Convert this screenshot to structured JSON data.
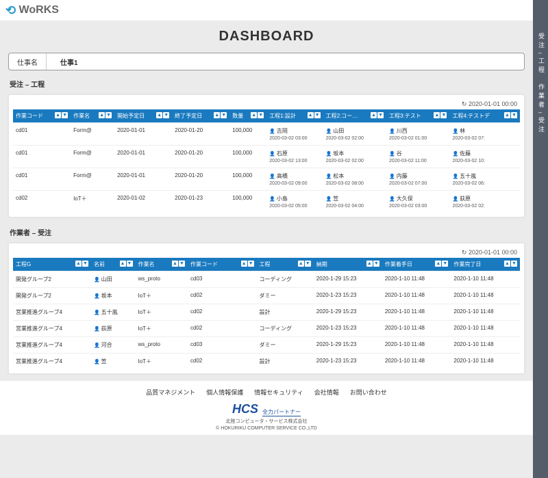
{
  "brand": {
    "name": "WoRKS"
  },
  "title": "DASHBOARD",
  "sidebar": {
    "items": [
      "受注 – 工程",
      "作業者 – 受注"
    ]
  },
  "jobbar": {
    "label": "仕事名",
    "value": "仕事1"
  },
  "section1": {
    "title": "受注 – 工程",
    "timestamp": "2020-01-01 00:00",
    "columns": [
      "作業コード",
      "作業名",
      "開始予定日",
      "終了予定日",
      "数量",
      "工程1:設計",
      "工程2:コー…",
      "工程3:テスト",
      "工程4:テストデ"
    ],
    "rows": [
      {
        "code": "cd01",
        "name": "Form@",
        "start": "2020-01-01",
        "end": "2020-01-20",
        "qty": "100,000",
        "p": [
          {
            "n": "吉岡",
            "d": "2020-03-02 03:00"
          },
          {
            "n": "山田",
            "d": "2020-03-02 02:00"
          },
          {
            "n": "川西",
            "d": "2020-03-02 01:00"
          },
          {
            "n": "林",
            "d": "2020-03-02 07:"
          }
        ]
      },
      {
        "code": "cd01",
        "name": "Form@",
        "start": "2020-01-01",
        "end": "2020-01-20",
        "qty": "100,000",
        "p": [
          {
            "n": "石原",
            "d": "2020-03-02 13:00"
          },
          {
            "n": "坂本",
            "d": "2020-03-02 02:00"
          },
          {
            "n": "谷",
            "d": "2020-03-02 11:00"
          },
          {
            "n": "佐藤",
            "d": "2020-03-02 10:"
          }
        ]
      },
      {
        "code": "cd01",
        "name": "Form@",
        "start": "2020-01-01",
        "end": "2020-01-20",
        "qty": "100,000",
        "p": [
          {
            "n": "高橋",
            "d": "2020-03-02 09:00"
          },
          {
            "n": "松本",
            "d": "2020-03-02 08:00"
          },
          {
            "n": "内藤",
            "d": "2020-03-02 07:00"
          },
          {
            "n": "五十嵐",
            "d": "2020-03-02 06:"
          }
        ]
      },
      {
        "code": "cd02",
        "name": "IoT＋",
        "start": "2020-01-02",
        "end": "2020-01-23",
        "qty": "100,000",
        "p": [
          {
            "n": "小島",
            "d": "2020-03-02 05:00"
          },
          {
            "n": "笠",
            "d": "2020-03-02 04:00"
          },
          {
            "n": "大久保",
            "d": "2020-03-02 03:00"
          },
          {
            "n": "荻原",
            "d": "2020-03-02 02:"
          }
        ]
      }
    ]
  },
  "section2": {
    "title": "作業者 – 受注",
    "timestamp": "2020-01-01 00:00",
    "columns": [
      "工程G",
      "名前",
      "作業名",
      "作業コード",
      "工程",
      "納期",
      "作業着手日",
      "作業完了日"
    ],
    "rows": [
      {
        "g": "開発グループ2",
        "n": "山田",
        "w": "ws_proto",
        "c": "cd03",
        "p": "コーディング",
        "due": "2020-1-29 15:23",
        "s": "2020-1-10 11:48",
        "e": "2020-1-10 11:48"
      },
      {
        "g": "開発グループ2",
        "n": "坂本",
        "w": "IoT＋",
        "c": "cd02",
        "p": "ダミー",
        "due": "2020-1-23 15:23",
        "s": "2020-1-10 11:48",
        "e": "2020-1-10 11:48"
      },
      {
        "g": "営業推進グループ4",
        "n": "五十嵐",
        "w": "IoT＋",
        "c": "cd02",
        "p": "設計",
        "due": "2020-1-29 15:23",
        "s": "2020-1-10 11:48",
        "e": "2020-1-10 11:48"
      },
      {
        "g": "営業推進グループ4",
        "n": "荻原",
        "w": "IoT＋",
        "c": "cd02",
        "p": "コーディング",
        "due": "2020-1-23 15:23",
        "s": "2020-1-10 11:48",
        "e": "2020-1-10 11:48"
      },
      {
        "g": "営業推進グループ4",
        "n": "河合",
        "w": "ws_proto",
        "c": "cd03",
        "p": "ダミー",
        "due": "2020-1-29 15:23",
        "s": "2020-1-10 11:48",
        "e": "2020-1-10 11:48"
      },
      {
        "g": "営業推進グループ4",
        "n": "笠",
        "w": "IoT＋",
        "c": "cd02",
        "p": "設計",
        "due": "2020-1-23 15:23",
        "s": "2020-1-10 11:48",
        "e": "2020-1-10 11:48"
      }
    ]
  },
  "footer": {
    "links": [
      "品質マネジメント",
      "個人情報保護",
      "情報セキュリティ",
      "会社情報",
      "お問い合わせ"
    ],
    "logo": "HCS",
    "partner": "全力パートナー",
    "company": "北陸コンピュータ・サービス株式会社",
    "copyright": "© HOKURIKU COMPUTER SERVICE CO.,LTD"
  }
}
